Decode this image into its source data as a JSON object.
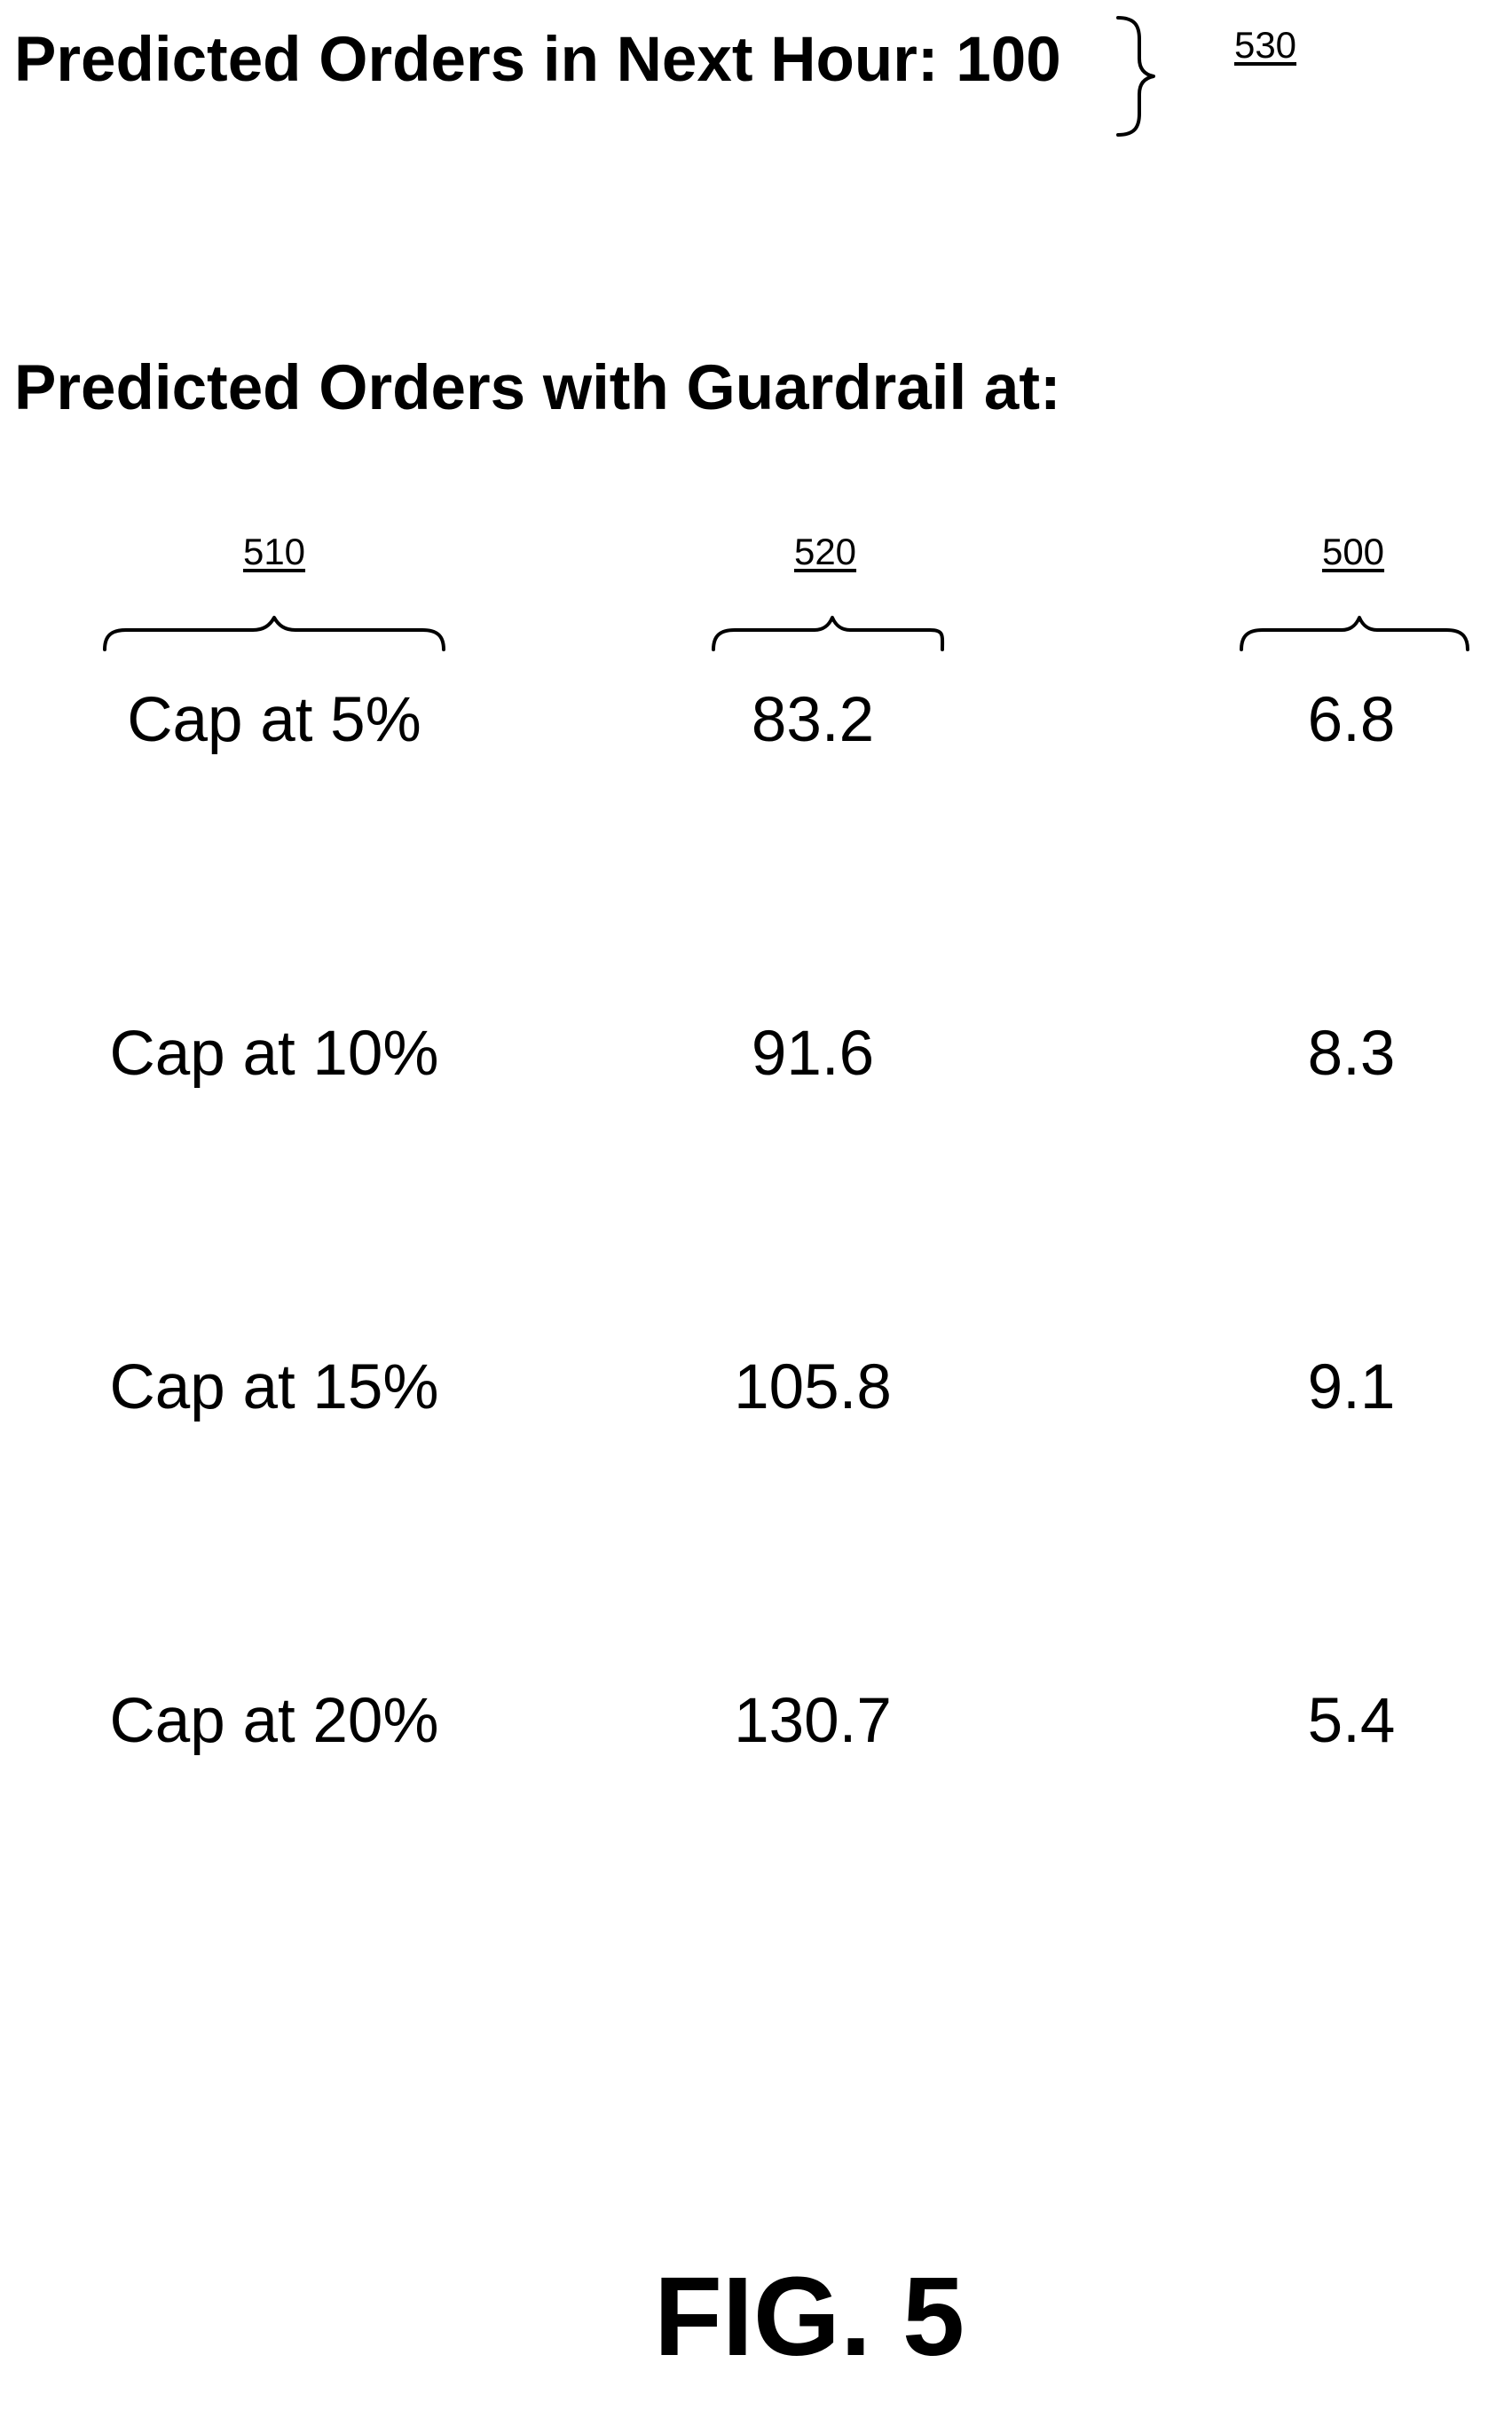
{
  "header": {
    "title": "Predicted Orders in Next Hour: 100",
    "ref": "530"
  },
  "section": {
    "title": "Predicted Orders with Guardrail at:"
  },
  "columns": [
    {
      "ref": "510"
    },
    {
      "ref": "520"
    },
    {
      "ref": "500"
    }
  ],
  "rows": [
    {
      "cap": "Cap at 5%",
      "predicted": "83.2",
      "error": "6.8"
    },
    {
      "cap": "Cap at 10%",
      "predicted": "91.6",
      "error": "8.3"
    },
    {
      "cap": "Cap at 15%",
      "predicted": "105.8",
      "error": "9.1"
    },
    {
      "cap": "Cap at 20%",
      "predicted": "130.7",
      "error": "5.4"
    }
  ],
  "figure": {
    "label": "FIG. 5"
  }
}
